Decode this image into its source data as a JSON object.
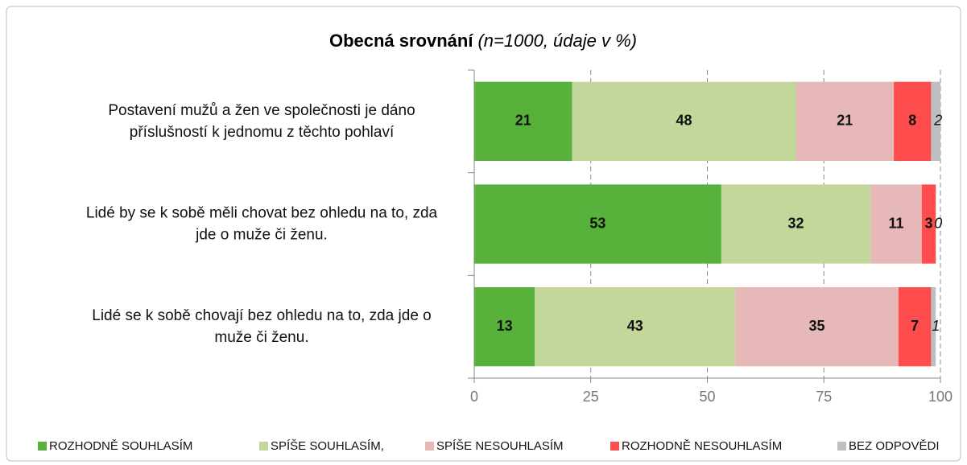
{
  "chart_data": {
    "type": "stacked-barh",
    "title": "Obecná srovnání",
    "subtitle": "(n=1000, údaje v %)",
    "categories": [
      [
        "Postavení mužů a žen ve společnosti je dáno",
        "příslušností k jednomu z těchto pohlaví"
      ],
      [
        "Lidé by se k sobě měli chovat bez ohledu na to, zda",
        "jde o muže či ženu."
      ],
      [
        "Lidé se k sobě chovají bez ohledu na to, zda jde o",
        "muže či ženu."
      ]
    ],
    "series": [
      {
        "name": "ROZHODNĚ SOUHLASÍM",
        "color": "#57b13a",
        "values": [
          21,
          53,
          13
        ]
      },
      {
        "name": "SPÍŠE SOUHLASÍM,",
        "color": "#c4d79b",
        "values": [
          48,
          32,
          43
        ]
      },
      {
        "name": "SPÍŠE NESOUHLASÍM",
        "color": "#e6b9b8",
        "values": [
          21,
          11,
          35
        ]
      },
      {
        "name": "ROZHODNĚ NESOUHLASÍM",
        "color": "#ff4d4d",
        "values": [
          8,
          3,
          7
        ]
      },
      {
        "name": "BEZ ODPOVĚDI",
        "color": "#bfbfbf",
        "values": [
          2,
          0,
          1
        ]
      }
    ],
    "xlim": [
      0,
      100
    ],
    "xticks": [
      0,
      25,
      50,
      75,
      100
    ],
    "grid": true
  }
}
